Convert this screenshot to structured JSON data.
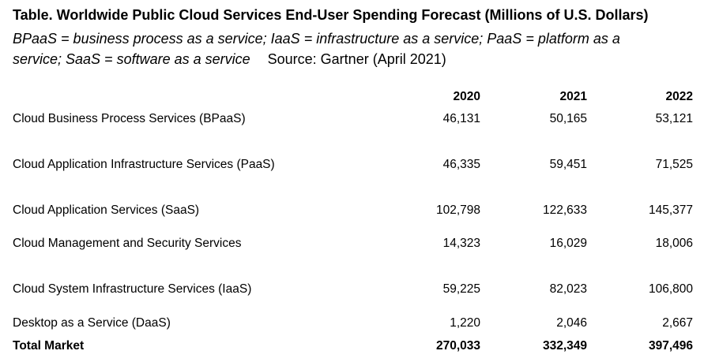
{
  "table": {
    "title": "Table. Worldwide Public Cloud Services End-User Spending Forecast (Millions of U.S. Dollars)",
    "definitions": "BPaaS = business process as a service; IaaS = infrastructure as a service; PaaS = platform as a service; SaaS = software as a service",
    "source": "Source: Gartner (April 2021)",
    "columns": [
      "2020",
      "2021",
      "2022"
    ],
    "rows": [
      {
        "label": "Cloud Business Process Services (BPaaS)",
        "values": [
          "46,131",
          "50,165",
          "53,121"
        ]
      },
      {
        "label": "Cloud Application Infrastructure Services (PaaS)",
        "values": [
          "46,335",
          "59,451",
          "71,525"
        ]
      },
      {
        "label": "Cloud Application Services (SaaS)",
        "values": [
          "102,798",
          "122,633",
          "145,377"
        ]
      },
      {
        "label": "Cloud Management and Security Services",
        "values": [
          "14,323",
          "16,029",
          "18,006"
        ]
      },
      {
        "label": "Cloud System Infrastructure Services (IaaS)",
        "values": [
          "59,225",
          "82,023",
          "106,800"
        ]
      },
      {
        "label": "Desktop as a Service (DaaS)",
        "values": [
          "1,220",
          "2,046",
          "2,667"
        ]
      }
    ],
    "total": {
      "label": "Total Market",
      "values": [
        "270,033",
        "332,349",
        "397,496"
      ]
    }
  }
}
